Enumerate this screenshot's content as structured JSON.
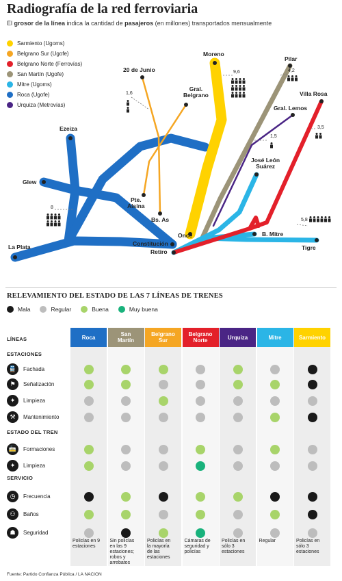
{
  "title": "Radiografía de la red ferroviaria",
  "subtitle": {
    "p1": "El ",
    "b1": "grosor de la línea",
    "p2": " indica la cantidad de ",
    "b2": "pasajeros",
    "p3": " (en millones) transportados mensualmente"
  },
  "legend": [
    {
      "label": "Sarmiento (Ugoms)",
      "color": "#ffd200"
    },
    {
      "label": "Belgrano Sur (Ugofe)",
      "color": "#f5a623"
    },
    {
      "label": "Belgrano Norte (Ferrovías)",
      "color": "#e3202a"
    },
    {
      "label": "San Martín (Ugofe)",
      "color": "#9c9478"
    },
    {
      "label": "Mitre (Ugoms)",
      "color": "#2bb5e6"
    },
    {
      "label": "Roca (Ugofe)",
      "color": "#1f6fc5"
    },
    {
      "label": "Urquiza (Metrovías)",
      "color": "#4a2585"
    }
  ],
  "map": {
    "stations": {
      "ezeiza": "Ezeiza",
      "glew": "Glew",
      "la_plata": "La Plata",
      "veinte_junio": "20 de Junio",
      "gral_belgrano": "Gral.\nBelgrano",
      "pte_alsina": "Pte.\nAlsina",
      "bs_as": "Bs. As",
      "constitucion": "Constitución",
      "moreno": "Moreno",
      "once": "Once",
      "pilar": "Pilar",
      "villa_rosa": "Villa Rosa",
      "gral_lemos": "Gral. Lemos",
      "jose_leon_suarez": "José León\nSuárez",
      "b_mitre": "B. Mitre",
      "tigre": "Tigre",
      "retiro": "Retiro"
    },
    "passengers": {
      "sarmiento": "9,6",
      "san_martin": "4,2",
      "belgrano_sur": "1,6",
      "urquiza": "1,5",
      "belgrano_norte": "3,5",
      "roca": "8",
      "mitre": "5,8"
    }
  },
  "survey": {
    "title": "RELEVAMIENTO DEL ESTADO DE LAS 7 LÍNEAS DE TRENES",
    "status_legend": [
      {
        "label": "Mala",
        "color": "#1a1a1a"
      },
      {
        "label": "Regular",
        "color": "#bdbdbd"
      },
      {
        "label": "Buena",
        "color": "#a8d46a"
      },
      {
        "label": "Muy buena",
        "color": "#19b27c"
      }
    ],
    "columns": [
      {
        "label": "Roca",
        "color": "#1f6fc5"
      },
      {
        "label": "San\nMartín",
        "color": "#9c9478"
      },
      {
        "label": "Belgrano\nSur",
        "color": "#f5a623"
      },
      {
        "label": "Belgrano\nNorte",
        "color": "#e3202a"
      },
      {
        "label": "Urquiza",
        "color": "#4a2585"
      },
      {
        "label": "Mitre",
        "color": "#2bb5e6"
      },
      {
        "label": "Sarmiento",
        "color": "#ffd200"
      }
    ],
    "lineas_label": "LÍNEAS",
    "groups": [
      {
        "label": "ESTACIONES",
        "rows": [
          {
            "label": "Fachada",
            "icon": "train-icon",
            "values": [
              "buena",
              "buena",
              "buena",
              "regular",
              "buena",
              "regular",
              "mala"
            ]
          },
          {
            "label": "Señalización",
            "icon": "signal-icon",
            "values": [
              "buena",
              "buena",
              "regular",
              "regular",
              "buena",
              "buena",
              "mala"
            ]
          },
          {
            "label": "Limpieza",
            "icon": "broom-icon",
            "values": [
              "regular",
              "regular",
              "buena",
              "regular",
              "regular",
              "regular",
              "regular"
            ]
          },
          {
            "label": "Mantenimiento",
            "icon": "wrench-icon",
            "values": [
              "regular",
              "regular",
              "regular",
              "regular",
              "regular",
              "buena",
              "mala"
            ]
          }
        ]
      },
      {
        "label": "ESTADO DEL TREN",
        "rows": [
          {
            "label": "Formaciones",
            "icon": "train-front-icon",
            "values": [
              "buena",
              "regular",
              "regular",
              "buena",
              "regular",
              "buena",
              "regular"
            ]
          },
          {
            "label": "Limpieza",
            "icon": "broom-icon",
            "values": [
              "buena",
              "regular",
              "regular",
              "muybuena",
              "regular",
              "regular",
              "regular"
            ]
          }
        ]
      },
      {
        "label": "SERVICIO",
        "rows": [
          {
            "label": "Frecuencia",
            "icon": "clock-icon",
            "values": [
              "mala",
              "buena",
              "mala",
              "buena",
              "buena",
              "mala",
              "mala"
            ]
          },
          {
            "label": "Baños",
            "icon": "restroom-icon",
            "values": [
              "buena",
              "buena",
              "regular",
              "buena",
              "regular",
              "buena",
              "mala"
            ]
          },
          {
            "label": "Seguridad",
            "icon": "security-icon",
            "values": [
              "regular",
              "mala",
              "buena",
              "muybuena",
              "regular",
              "regular",
              "regular"
            ]
          }
        ]
      }
    ],
    "notes": [
      "Policías en 9\nestaciones",
      "Sin policías\nen las 9\nestaciones;\nrobos y\narrebatos",
      "Policías en\nla mayoría\nde las\nestaciones",
      "Cámaras de\nseguridad y\npolicías",
      "Policías en\nsólo 3\nestaciones",
      "Regular",
      "Policías en\nsólo 3\nestaciones"
    ]
  },
  "source": "Fuente: Partido Confianza Pública / LA NACION"
}
